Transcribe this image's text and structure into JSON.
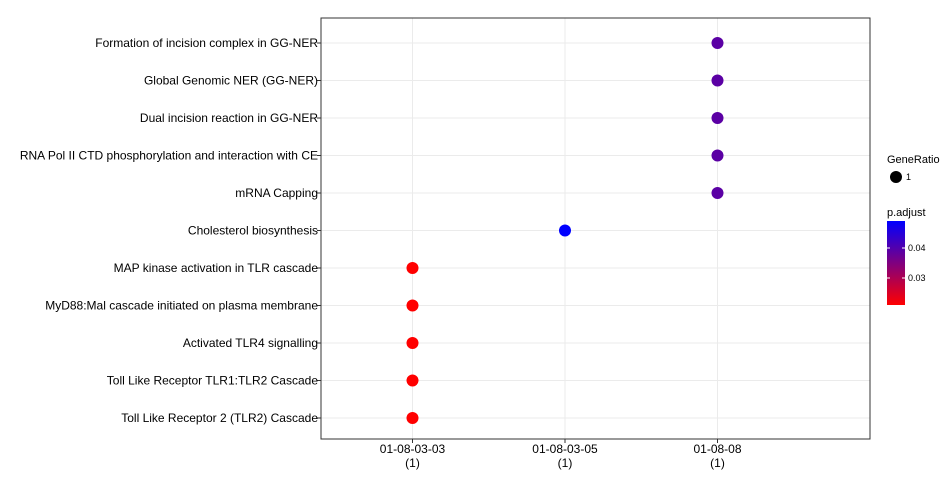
{
  "chart_data": {
    "type": "scatter",
    "x_categories": [
      {
        "line1": "01-08-03-03",
        "line2": "(1)"
      },
      {
        "line1": "01-08-03-05",
        "line2": "(1)"
      },
      {
        "line1": "01-08-08",
        "line2": "(1)"
      }
    ],
    "y_categories": [
      "Formation of incision complex in GG-NER",
      "Global Genomic NER (GG-NER)",
      "Dual incision reaction in GG-NER",
      "RNA Pol II CTD phosphorylation and interaction with CE",
      "mRNA Capping",
      "Cholesterol biosynthesis",
      "MAP kinase activation in TLR cascade",
      "MyD88:Mal cascade initiated on plasma membrane",
      "Activated TLR4 signalling",
      "Toll Like Receptor TLR1:TLR2 Cascade",
      "Toll Like Receptor 2 (TLR2) Cascade"
    ],
    "points": [
      {
        "x": "01-08-08",
        "y": "Formation of incision complex in GG-NER",
        "gene_ratio": 1,
        "p_adjust": 0.039
      },
      {
        "x": "01-08-08",
        "y": "Global Genomic NER (GG-NER)",
        "gene_ratio": 1,
        "p_adjust": 0.039
      },
      {
        "x": "01-08-08",
        "y": "Dual incision reaction in GG-NER",
        "gene_ratio": 1,
        "p_adjust": 0.039
      },
      {
        "x": "01-08-08",
        "y": "RNA Pol II CTD phosphorylation and interaction with CE",
        "gene_ratio": 1,
        "p_adjust": 0.039
      },
      {
        "x": "01-08-08",
        "y": "mRNA Capping",
        "gene_ratio": 1,
        "p_adjust": 0.039
      },
      {
        "x": "01-08-03-05",
        "y": "Cholesterol biosynthesis",
        "gene_ratio": 1,
        "p_adjust": 0.049
      },
      {
        "x": "01-08-03-03",
        "y": "MAP kinase activation in TLR cascade",
        "gene_ratio": 1,
        "p_adjust": 0.021
      },
      {
        "x": "01-08-03-03",
        "y": "MyD88:Mal cascade initiated on plasma membrane",
        "gene_ratio": 1,
        "p_adjust": 0.021
      },
      {
        "x": "01-08-03-03",
        "y": "Activated TLR4 signalling",
        "gene_ratio": 1,
        "p_adjust": 0.021
      },
      {
        "x": "01-08-03-03",
        "y": "Toll Like Receptor TLR1:TLR2 Cascade",
        "gene_ratio": 1,
        "p_adjust": 0.021
      },
      {
        "x": "01-08-03-03",
        "y": "Toll Like Receptor 2 (TLR2) Cascade",
        "gene_ratio": 1,
        "p_adjust": 0.021
      }
    ],
    "legend_size": {
      "title": "GeneRatio",
      "entries": [
        {
          "label": "1",
          "value": 1
        }
      ]
    },
    "legend_color": {
      "title": "p.adjust",
      "low_color": "#ff0000",
      "high_color": "#0000ff",
      "range": [
        0.021,
        0.049
      ],
      "ticks": [
        {
          "label": "0.03",
          "value": 0.03
        },
        {
          "label": "0.04",
          "value": 0.04
        }
      ]
    },
    "grid": true,
    "legend_position": "right"
  }
}
